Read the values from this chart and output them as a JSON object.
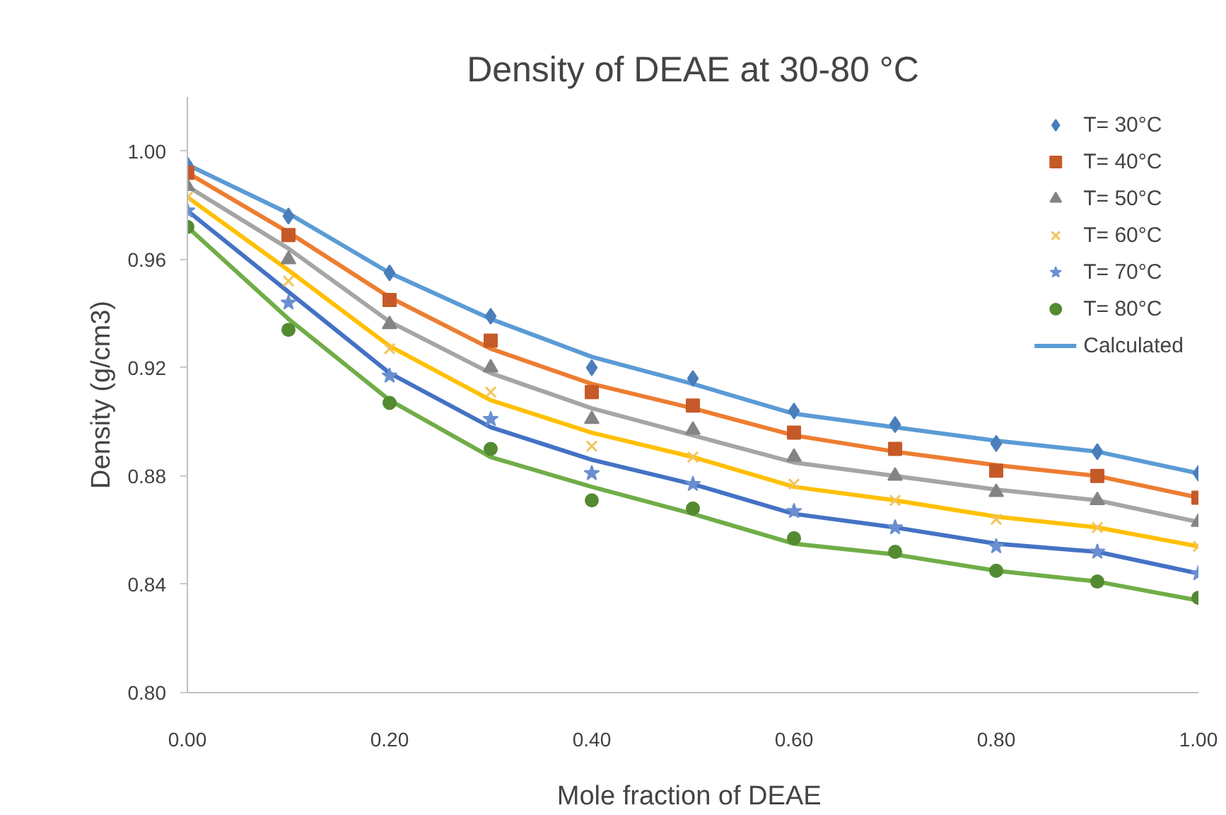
{
  "chart_data": {
    "type": "scatter",
    "title": "Density of DEAE at 30-80 °C",
    "xlabel": "Mole fraction of  DEAE",
    "ylabel": "Density (g/cm3)",
    "x": [
      0,
      0.1,
      0.2,
      0.3,
      0.4,
      0.5,
      0.6,
      0.7,
      0.8,
      0.9,
      1.0
    ],
    "xlim": [
      0,
      1
    ],
    "ylim": [
      0.8,
      1.02
    ],
    "xticks": [
      {
        "value": 0,
        "label": "0.00"
      },
      {
        "value": 0.2,
        "label": "0.20"
      },
      {
        "value": 0.4,
        "label": "0.40"
      },
      {
        "value": 0.6,
        "label": "0.60"
      },
      {
        "value": 0.8,
        "label": "0.80"
      },
      {
        "value": 1.0,
        "label": "1.00"
      }
    ],
    "yticks": [
      {
        "value": 0.8,
        "label": "0.80"
      },
      0.84,
      0.88,
      0.92,
      0.96,
      {
        "value": 1.0,
        "label": "1.00"
      }
    ],
    "grid": false,
    "legend": "top right",
    "series": [
      {
        "name": "T= 30°C",
        "marker": "diamond",
        "color": "#4a7ebb",
        "values": [
          0.995,
          0.976,
          0.955,
          0.939,
          0.92,
          0.916,
          0.904,
          0.899,
          0.892,
          0.889,
          0.881
        ]
      },
      {
        "name": "T= 40°C",
        "marker": "square",
        "color": "#c55a28",
        "values": [
          0.992,
          0.969,
          0.945,
          0.93,
          0.911,
          0.906,
          0.896,
          0.89,
          0.882,
          0.88,
          0.872
        ]
      },
      {
        "name": "T= 50°C",
        "marker": "triangle",
        "color": "#848484",
        "values": [
          0.987,
          0.96,
          0.936,
          0.92,
          0.901,
          0.897,
          0.887,
          0.88,
          0.874,
          0.871,
          0.863
        ]
      },
      {
        "name": "T= 60°C",
        "marker": "cross",
        "color": "#f2c45c",
        "values": [
          0.983,
          0.952,
          0.927,
          0.911,
          0.891,
          0.887,
          0.877,
          0.871,
          0.864,
          0.861,
          0.854
        ]
      },
      {
        "name": "T= 70°C",
        "marker": "star",
        "color": "#6a8fd1",
        "values": [
          0.978,
          0.944,
          0.917,
          0.901,
          0.881,
          0.877,
          0.867,
          0.861,
          0.854,
          0.852,
          0.844
        ]
      },
      {
        "name": "T= 80°C",
        "marker": "circle",
        "color": "#548a32",
        "values": [
          0.972,
          0.934,
          0.907,
          0.89,
          0.871,
          0.868,
          0.857,
          0.852,
          0.845,
          0.841,
          0.835
        ]
      },
      {
        "name": "Calculated",
        "type": "line",
        "color": "#5b9bd5",
        "values": [
          0.995,
          0.977,
          0.955,
          0.938,
          0.924,
          0.914,
          0.903,
          0.898,
          0.893,
          0.889,
          0.881
        ]
      },
      {
        "type": "line",
        "color": "#ed7d31",
        "values": [
          0.992,
          0.97,
          0.946,
          0.927,
          0.914,
          0.905,
          0.895,
          0.889,
          0.884,
          0.88,
          0.872
        ]
      },
      {
        "type": "line",
        "color": "#a5a5a5",
        "values": [
          0.987,
          0.964,
          0.937,
          0.918,
          0.905,
          0.895,
          0.885,
          0.88,
          0.875,
          0.871,
          0.863
        ]
      },
      {
        "type": "line",
        "color": "#ffc000",
        "values": [
          0.983,
          0.956,
          0.928,
          0.908,
          0.896,
          0.887,
          0.876,
          0.871,
          0.865,
          0.861,
          0.854
        ]
      },
      {
        "type": "line",
        "color": "#4472c4",
        "values": [
          0.978,
          0.948,
          0.918,
          0.898,
          0.886,
          0.877,
          0.866,
          0.861,
          0.855,
          0.852,
          0.844
        ]
      },
      {
        "type": "line",
        "color": "#70ad47",
        "values": [
          0.972,
          0.938,
          0.908,
          0.887,
          0.876,
          0.866,
          0.855,
          0.851,
          0.845,
          0.841,
          0.834
        ]
      }
    ]
  }
}
